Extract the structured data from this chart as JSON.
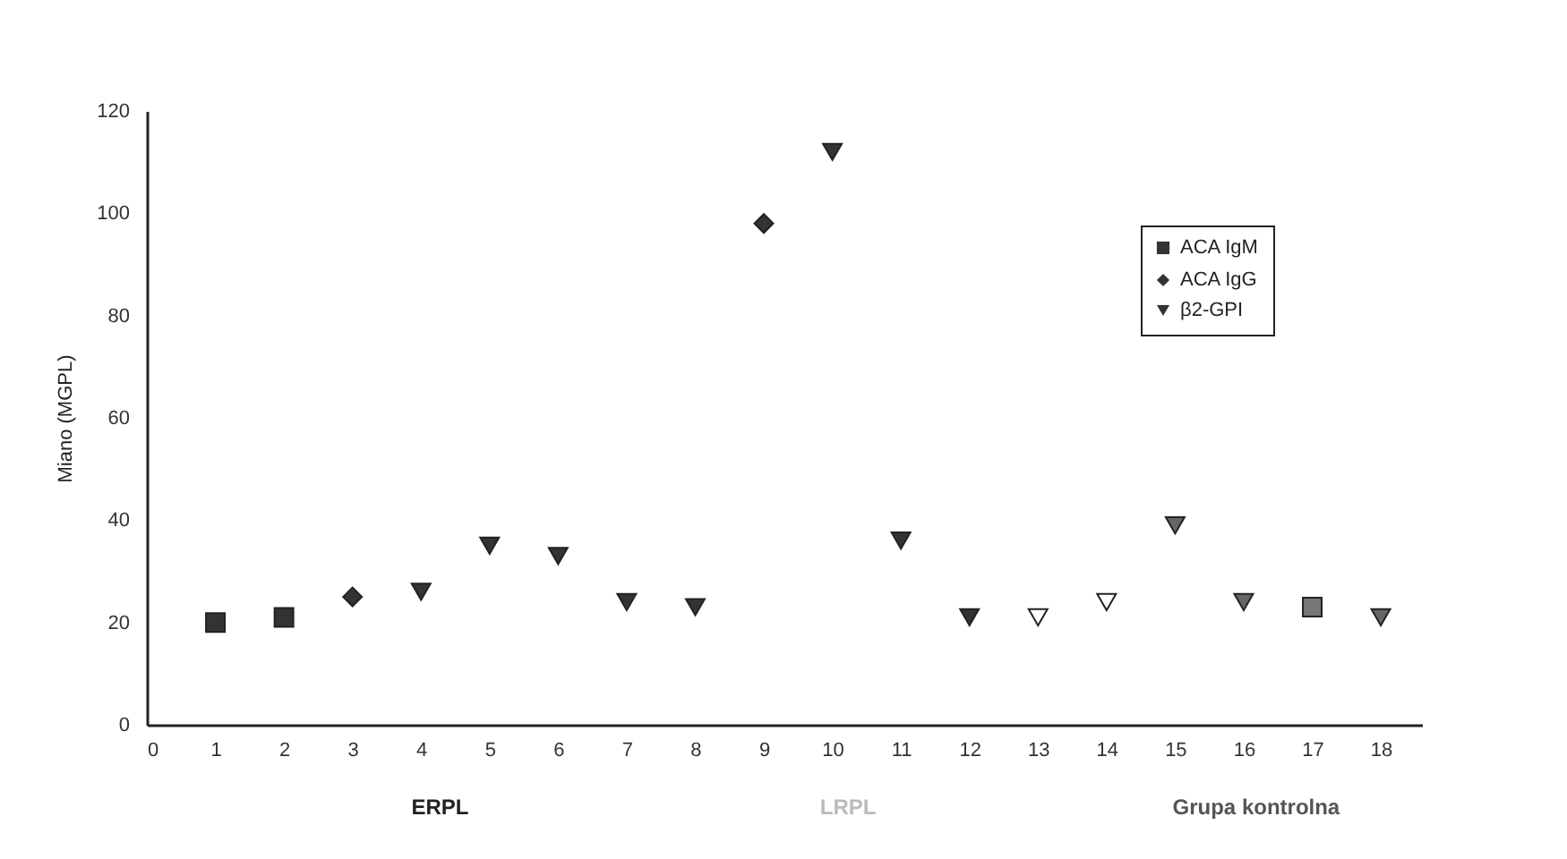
{
  "chart_data": {
    "type": "scatter",
    "ylabel": "Miano (MGPL)",
    "xlim": [
      0,
      18.6
    ],
    "xticks": [
      0,
      1,
      2,
      3,
      4,
      5,
      6,
      7,
      8,
      9,
      10,
      11,
      12,
      13,
      14,
      15,
      16,
      17,
      18
    ],
    "ylim": [
      0,
      120
    ],
    "yticks": [
      0,
      20,
      40,
      60,
      80,
      100,
      120
    ],
    "legend": "top right",
    "grid": false,
    "annotations": [
      "ERPL",
      "LRPL",
      "Grupa kontrolna"
    ],
    "series": [
      {
        "name": "ACA IgM",
        "marker": "square",
        "color": "#333333",
        "x": [
          1,
          2,
          17
        ],
        "values": [
          20,
          21,
          23
        ],
        "colors": [
          "#333333",
          "#333333",
          "#777777"
        ]
      },
      {
        "name": "ACA IgG",
        "marker": "diamond",
        "color": "#333333",
        "x": [
          3,
          9
        ],
        "values": [
          25,
          98
        ],
        "colors": [
          "#333333",
          "#333333"
        ]
      },
      {
        "name": "β2-GPI",
        "marker": "triangle",
        "color": "#333333",
        "x": [
          4,
          5,
          6,
          7,
          8,
          10,
          11,
          12,
          13,
          14,
          15,
          16,
          18
        ],
        "values": [
          26,
          35,
          33,
          24,
          23,
          112,
          36,
          21,
          21,
          24,
          39,
          24,
          21
        ],
        "colors": [
          "#333333",
          "#333333",
          "#333333",
          "#333333",
          "#333333",
          "#333333",
          "#333333",
          "#333333",
          "#ffffff",
          "#ffffff",
          "#666666",
          "#666666",
          "#666666"
        ]
      }
    ]
  }
}
